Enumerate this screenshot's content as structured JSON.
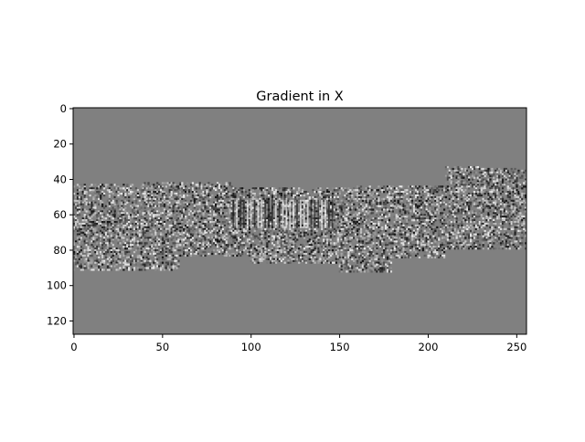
{
  "chart_data": {
    "type": "heatmap",
    "title": "Gradient in X",
    "xlabel": "",
    "ylabel": "",
    "colormap": "gray",
    "background_value_color": "#808080",
    "image_extent": {
      "x": [
        0,
        256
      ],
      "y": [
        128,
        0
      ]
    },
    "xlim": [
      -0.5,
      255.5
    ],
    "ylim": [
      127.5,
      -0.5
    ],
    "x_ticks": [
      0,
      50,
      100,
      150,
      200,
      250
    ],
    "x_tick_labels": [
      "0",
      "50",
      "100",
      "150",
      "200",
      "250"
    ],
    "y_ticks": [
      0,
      20,
      40,
      60,
      80,
      100,
      120
    ],
    "y_tick_labels": [
      "0",
      "20",
      "40",
      "60",
      "80",
      "100",
      "120"
    ],
    "grid": false,
    "legend": "none"
  }
}
